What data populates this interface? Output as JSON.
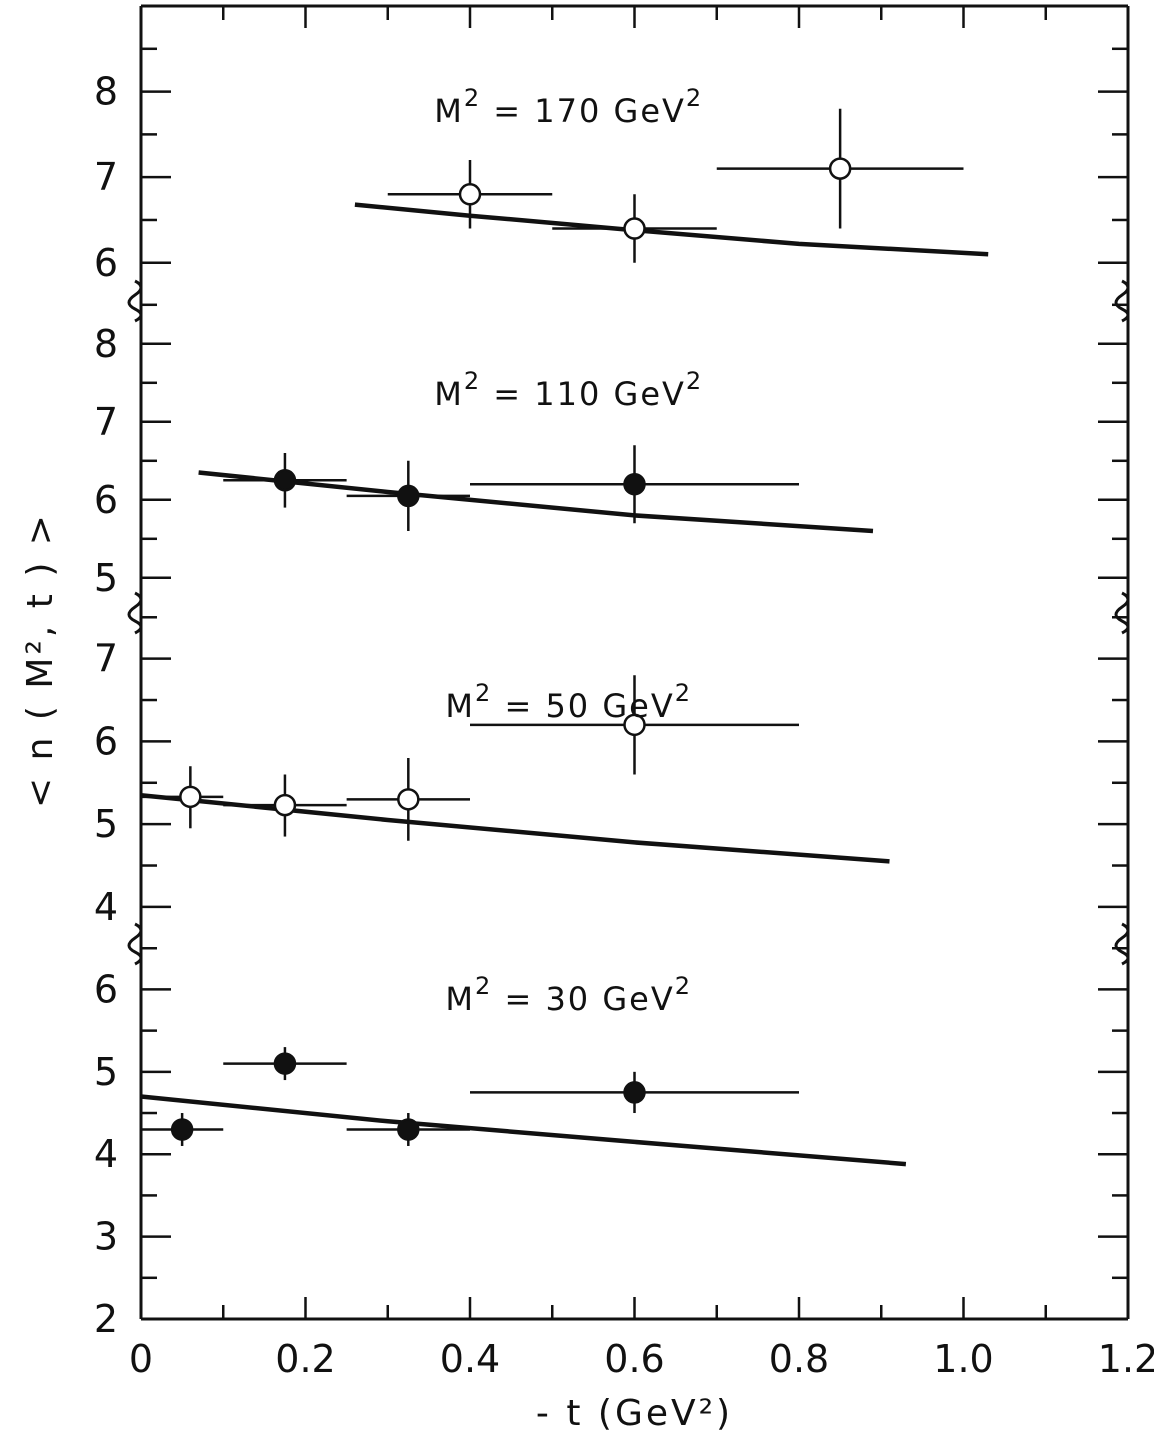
{
  "chart_data": {
    "type": "scatter",
    "xlabel": "- t (GeV²)",
    "ylabel": "< n ( M², t ) >",
    "x_ticks": [
      "0",
      "0.2",
      "0.4",
      "0.6",
      "0.8",
      "1.0",
      "1.2"
    ],
    "xlim": [
      0,
      1.2
    ],
    "grid": false,
    "panels": [
      {
        "label_prefix": "M",
        "label_sup": "2",
        "label_mid": " = 170  GeV",
        "label_sup2": "2",
        "marker": "open",
        "ylim": [
          5.6,
          9.0
        ],
        "y_ticks": [
          "6",
          "7",
          "8"
        ],
        "points": [
          {
            "x": 0.4,
            "y": 6.8,
            "xerr": [
              0.3,
              0.5
            ],
            "yerr": [
              6.4,
              7.2
            ]
          },
          {
            "x": 0.6,
            "y": 6.4,
            "xerr": [
              0.5,
              0.7
            ],
            "yerr": [
              6.0,
              6.8
            ]
          },
          {
            "x": 0.85,
            "y": 7.1,
            "xerr": [
              0.7,
              1.0
            ],
            "yerr": [
              6.4,
              7.8
            ]
          }
        ],
        "curve": {
          "x": [
            0.26,
            0.4,
            0.6,
            0.8,
            1.03
          ],
          "y": [
            6.68,
            6.55,
            6.38,
            6.22,
            6.1
          ]
        }
      },
      {
        "label_prefix": "M",
        "label_sup": "2",
        "label_mid": " = 110  GeV",
        "label_sup2": "2",
        "marker": "filled",
        "ylim": [
          4.6,
          8.6
        ],
        "y_ticks": [
          "5",
          "6",
          "7",
          "8"
        ],
        "points": [
          {
            "x": 0.175,
            "y": 6.25,
            "xerr": [
              0.1,
              0.25
            ],
            "yerr": [
              5.9,
              6.6
            ]
          },
          {
            "x": 0.325,
            "y": 6.05,
            "xerr": [
              0.25,
              0.4
            ],
            "yerr": [
              5.6,
              6.5
            ]
          },
          {
            "x": 0.6,
            "y": 6.2,
            "xerr": [
              0.4,
              0.8
            ],
            "yerr": [
              5.7,
              6.7
            ]
          }
        ],
        "curve": {
          "x": [
            0.07,
            0.3,
            0.6,
            0.89
          ],
          "y": [
            6.35,
            6.1,
            5.8,
            5.6
          ]
        }
      },
      {
        "label_prefix": "M",
        "label_sup": "2",
        "label_mid": " = 50  GeV",
        "label_sup2": "2",
        "marker": "open",
        "ylim": [
          3.6,
          7.6
        ],
        "y_ticks": [
          "4",
          "5",
          "6",
          "7"
        ],
        "points": [
          {
            "x": 0.06,
            "y": 5.33,
            "xerr": [
              0.0,
              0.1
            ],
            "yerr": [
              4.95,
              5.7
            ]
          },
          {
            "x": 0.175,
            "y": 5.23,
            "xerr": [
              0.1,
              0.25
            ],
            "yerr": [
              4.85,
              5.6
            ]
          },
          {
            "x": 0.325,
            "y": 5.3,
            "xerr": [
              0.25,
              0.4
            ],
            "yerr": [
              4.8,
              5.8
            ]
          },
          {
            "x": 0.6,
            "y": 6.2,
            "xerr": [
              0.4,
              0.8
            ],
            "yerr": [
              5.6,
              6.8
            ]
          }
        ],
        "curve": {
          "x": [
            0.0,
            0.3,
            0.6,
            0.91
          ],
          "y": [
            5.35,
            5.05,
            4.78,
            4.55
          ]
        }
      },
      {
        "label_prefix": "M",
        "label_sup": "2",
        "label_mid": " = 30  GeV",
        "label_sup2": "2",
        "marker": "filled",
        "ylim": [
          2.0,
          6.6
        ],
        "y_ticks": [
          "2",
          "3",
          "4",
          "5",
          "6"
        ],
        "points": [
          {
            "x": 0.05,
            "y": 4.3,
            "xerr": [
              0.0,
              0.1
            ],
            "yerr": [
              4.1,
              4.5
            ]
          },
          {
            "x": 0.175,
            "y": 5.1,
            "xerr": [
              0.1,
              0.25
            ],
            "yerr": [
              4.9,
              5.3
            ]
          },
          {
            "x": 0.325,
            "y": 4.3,
            "xerr": [
              0.25,
              0.4
            ],
            "yerr": [
              4.1,
              4.5
            ]
          },
          {
            "x": 0.6,
            "y": 4.75,
            "xerr": [
              0.4,
              0.8
            ],
            "yerr": [
              4.5,
              5.0
            ]
          }
        ],
        "curve": {
          "x": [
            0.0,
            0.3,
            0.6,
            0.93
          ],
          "y": [
            4.7,
            4.4,
            4.15,
            3.88
          ]
        }
      }
    ]
  }
}
